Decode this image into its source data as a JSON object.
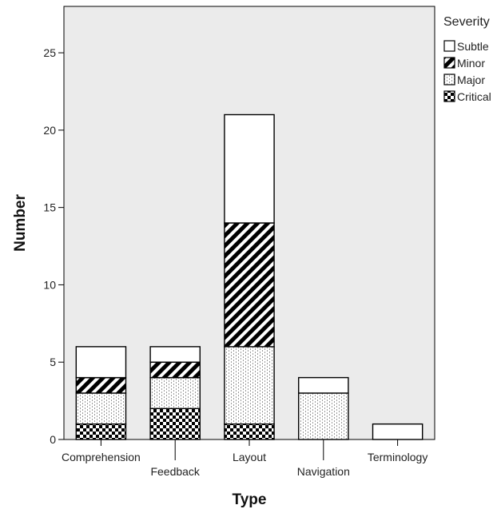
{
  "chart_data": {
    "type": "bar",
    "stacked": true,
    "xlabel": "Type",
    "ylabel": "Number",
    "ylim": [
      0,
      28
    ],
    "yticks": [
      0,
      5,
      10,
      15,
      20,
      25
    ],
    "grid": false,
    "legend_title": "Severity",
    "legend_position": "top-right",
    "plot_background": "#ebebeb",
    "categories": [
      "Comprehension",
      "Feedback",
      "Layout",
      "Navigation",
      "Terminology"
    ],
    "series": [
      {
        "name": "Critical",
        "pattern": "checker",
        "values": [
          1,
          2,
          1,
          0,
          0
        ]
      },
      {
        "name": "Major",
        "pattern": "dots",
        "values": [
          2,
          2,
          5,
          3,
          0
        ]
      },
      {
        "name": "Minor",
        "pattern": "diagonal",
        "values": [
          1,
          1,
          8,
          0,
          0
        ]
      },
      {
        "name": "Subtle",
        "pattern": "solid-white",
        "values": [
          2,
          1,
          7,
          1,
          1
        ]
      }
    ],
    "legend_order": [
      "Subtle",
      "Minor",
      "Major",
      "Critical"
    ]
  }
}
